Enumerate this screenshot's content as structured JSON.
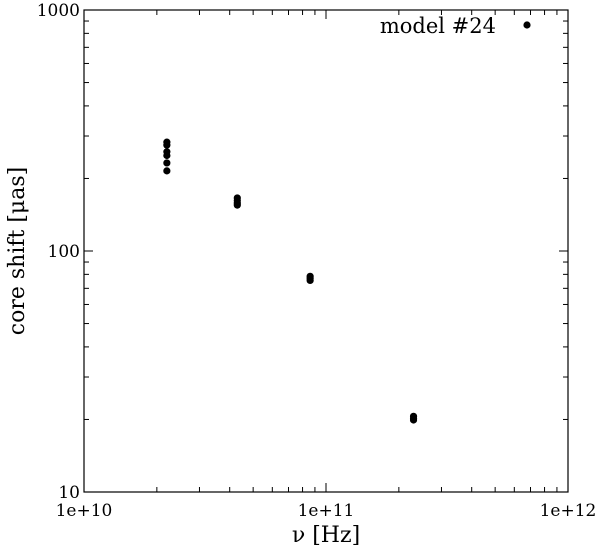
{
  "chart_data": {
    "type": "scatter",
    "xlabel": "ν [Hz]",
    "ylabel": "core shift [μas]",
    "x_scale": "log",
    "y_scale": "log",
    "xlim": [
      10000000000.0,
      1000000000000.0
    ],
    "ylim": [
      10,
      1000
    ],
    "x_tick_labels": [
      "1e+10",
      "1e+11",
      "1e+12"
    ],
    "y_tick_labels": [
      "10",
      "100",
      "1000"
    ],
    "grid": false,
    "legend": {
      "placement": "top-right"
    },
    "series": [
      {
        "name": "model #24",
        "color": "#000000",
        "points": [
          {
            "x": 22000000000.0,
            "y": 283
          },
          {
            "x": 22000000000.0,
            "y": 275
          },
          {
            "x": 22000000000.0,
            "y": 258
          },
          {
            "x": 22000000000.0,
            "y": 249
          },
          {
            "x": 22000000000.0,
            "y": 232
          },
          {
            "x": 22000000000.0,
            "y": 215
          },
          {
            "x": 43000000000.0,
            "y": 166
          },
          {
            "x": 43000000000.0,
            "y": 162
          },
          {
            "x": 43000000000.0,
            "y": 158
          },
          {
            "x": 43000000000.0,
            "y": 155
          },
          {
            "x": 86000000000.0,
            "y": 78.5
          },
          {
            "x": 86000000000.0,
            "y": 77
          },
          {
            "x": 86000000000.0,
            "y": 75.5
          },
          {
            "x": 230000000000.0,
            "y": 20.6
          },
          {
            "x": 230000000000.0,
            "y": 20.2
          },
          {
            "x": 230000000000.0,
            "y": 19.9
          }
        ]
      }
    ]
  }
}
